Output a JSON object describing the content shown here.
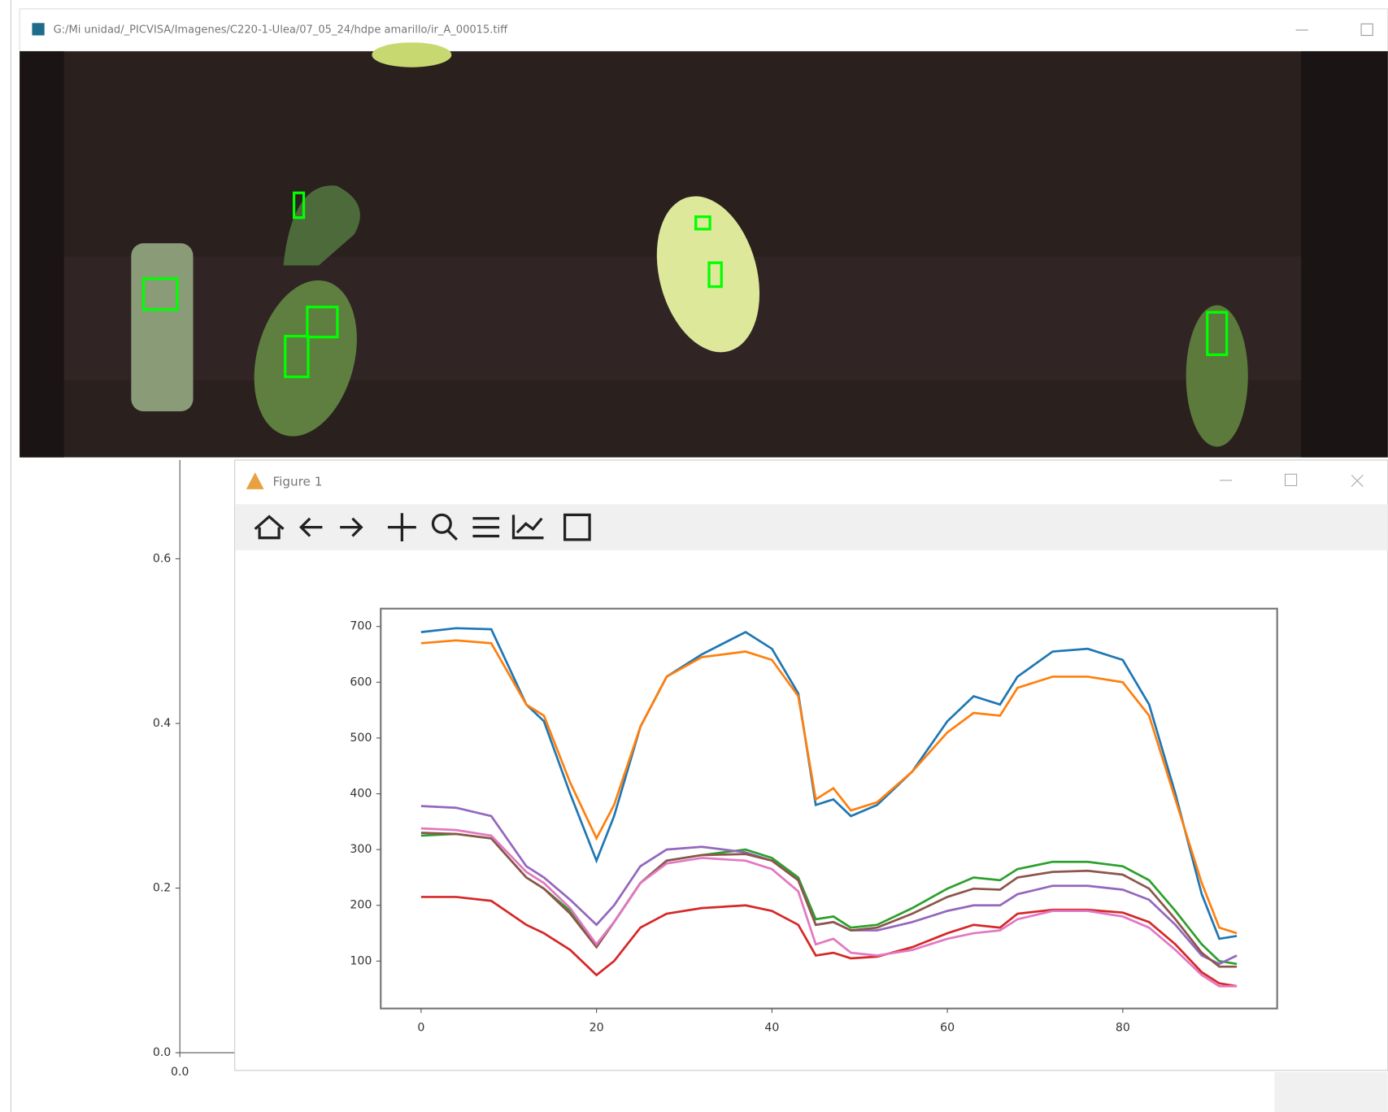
{
  "image_window": {
    "title": "G:/Mi unidad/_PICVISA/Imagenes/C220-1-Ulea/07_05_24/hdpe amarillo/ir_A_00015.tiff"
  },
  "figure_window": {
    "title": "Figure 1"
  },
  "chart_data": [
    {
      "type": "line",
      "series": [],
      "xlim": [
        0,
        1.05
      ],
      "ylim": [
        0,
        0.72
      ],
      "xticks": [
        {
          "value": 0,
          "label": "0.0"
        }
      ],
      "yticks": [
        {
          "value": 0,
          "label": "0.0"
        },
        0.2,
        0.4,
        0.6
      ]
    },
    {
      "type": "line",
      "x": [
        0,
        4,
        8,
        12,
        14,
        17,
        20,
        22,
        25,
        28,
        32,
        37,
        40,
        43,
        45,
        47,
        49,
        52,
        56,
        60,
        63,
        66,
        68,
        72,
        76,
        80,
        83,
        86,
        89,
        91,
        93
      ],
      "xlim": [
        -4.6,
        97.6
      ],
      "ylim": [
        15,
        732
      ],
      "xticks": [
        0,
        20,
        40,
        60,
        80
      ],
      "yticks": [
        100,
        200,
        300,
        400,
        500,
        600,
        700
      ],
      "series": [
        {
          "color": "#1f77b4",
          "values": [
            690,
            697,
            695,
            560,
            530,
            400,
            280,
            360,
            520,
            610,
            650,
            690,
            660,
            580,
            380,
            390,
            360,
            380,
            440,
            530,
            575,
            560,
            610,
            655,
            660,
            640,
            560,
            400,
            220,
            140,
            145
          ]
        },
        {
          "color": "#ff7f0e",
          "values": [
            670,
            675,
            670,
            560,
            540,
            420,
            320,
            380,
            520,
            610,
            645,
            655,
            640,
            575,
            390,
            410,
            370,
            385,
            440,
            510,
            545,
            540,
            590,
            610,
            610,
            600,
            540,
            390,
            240,
            160,
            150
          ]
        },
        {
          "color": "#2ca02c",
          "values": [
            325,
            328,
            320,
            250,
            230,
            190,
            130,
            170,
            240,
            280,
            290,
            300,
            285,
            250,
            175,
            180,
            160,
            165,
            195,
            230,
            250,
            245,
            265,
            278,
            278,
            270,
            245,
            190,
            130,
            100,
            95
          ]
        },
        {
          "color": "#d62728",
          "values": [
            215,
            215,
            208,
            165,
            150,
            120,
            75,
            100,
            160,
            185,
            195,
            200,
            190,
            165,
            110,
            115,
            105,
            108,
            125,
            150,
            165,
            160,
            185,
            192,
            192,
            187,
            170,
            130,
            80,
            60,
            55
          ]
        },
        {
          "color": "#9467bd",
          "values": [
            378,
            375,
            360,
            270,
            250,
            210,
            165,
            200,
            270,
            300,
            305,
            295,
            280,
            245,
            165,
            170,
            155,
            155,
            170,
            190,
            200,
            200,
            220,
            235,
            235,
            228,
            210,
            165,
            110,
            95,
            110
          ]
        },
        {
          "color": "#8c564b",
          "values": [
            330,
            328,
            320,
            250,
            230,
            185,
            125,
            170,
            240,
            280,
            290,
            292,
            280,
            245,
            165,
            170,
            155,
            160,
            185,
            215,
            230,
            228,
            250,
            260,
            262,
            255,
            230,
            175,
            115,
            90,
            90
          ]
        },
        {
          "color": "#e377c2",
          "values": [
            338,
            335,
            325,
            260,
            240,
            195,
            130,
            170,
            240,
            275,
            285,
            280,
            265,
            225,
            130,
            140,
            115,
            110,
            120,
            140,
            150,
            155,
            175,
            190,
            190,
            180,
            160,
            120,
            75,
            55,
            55
          ]
        }
      ]
    }
  ]
}
